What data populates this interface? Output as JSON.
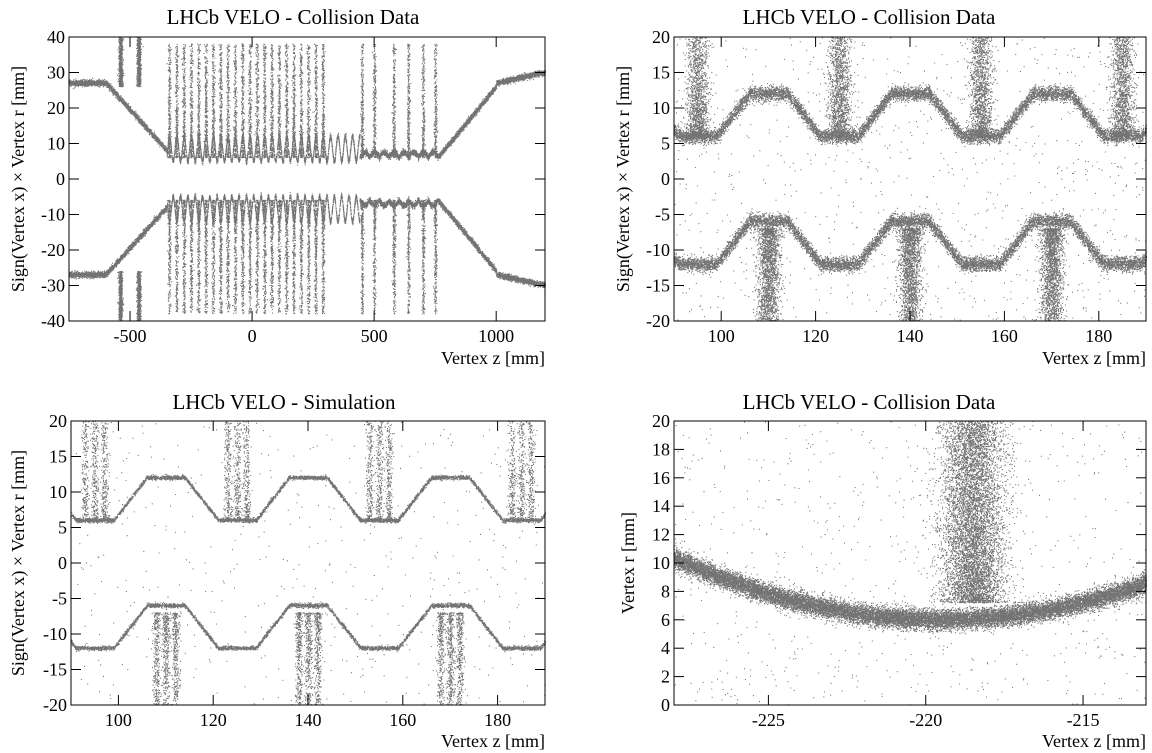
{
  "chart_data": [
    {
      "type": "scatter",
      "title": "LHCb VELO - Collision Data",
      "xlabel": "Vertex z [mm]",
      "ylabel": "Sign(Vertex x) × Vertex r [mm]",
      "xlim": [
        -750,
        1200
      ],
      "ylim": [
        -40,
        40
      ],
      "xticks": [
        -500,
        0,
        500,
        1000
      ],
      "yticks": [
        -40,
        -30,
        -20,
        -10,
        0,
        10,
        20,
        30,
        40
      ],
      "grid": false,
      "description_of_pattern": {
        "module_spacing_low_z_mm": 30,
        "modules_first_section": [
          -350,
          300
        ],
        "modules_second_section": [
          450,
          750
        ],
        "pileup_stations_z_mm": [
          -540,
          -460
        ]
      }
    },
    {
      "type": "scatter",
      "title": "LHCb VELO - Collision Data",
      "xlabel": "Vertex z [mm]",
      "ylabel": "Sign(Vertex x) × Vertex r [mm]",
      "xlim": [
        90,
        190
      ],
      "ylim": [
        -20,
        20
      ],
      "xticks": [
        100,
        120,
        140,
        160,
        180
      ],
      "yticks": [
        -20,
        -15,
        -10,
        -5,
        0,
        5,
        10,
        15,
        20
      ],
      "grid": false
    },
    {
      "type": "scatter",
      "title": "LHCb VELO - Simulation",
      "xlabel": "Vertex z [mm]",
      "ylabel": "Sign(Vertex x) × Vertex r [mm]",
      "xlim": [
        90,
        190
      ],
      "ylim": [
        -20,
        20
      ],
      "xticks": [
        100,
        120,
        140,
        160,
        180
      ],
      "yticks": [
        -20,
        -15,
        -10,
        -5,
        0,
        5,
        10,
        15,
        20
      ],
      "grid": false
    },
    {
      "type": "scatter",
      "title": "LHCb VELO - Collision Data",
      "xlabel": "Vertex z [mm]",
      "ylabel": "Vertex r [mm]",
      "xlim": [
        -228,
        -213
      ],
      "ylim": [
        0,
        20
      ],
      "xticks": [
        -225,
        -220,
        -215
      ],
      "yticks": [
        0,
        2,
        4,
        6,
        8,
        10,
        12,
        14,
        16,
        18,
        20
      ],
      "grid": false
    }
  ]
}
